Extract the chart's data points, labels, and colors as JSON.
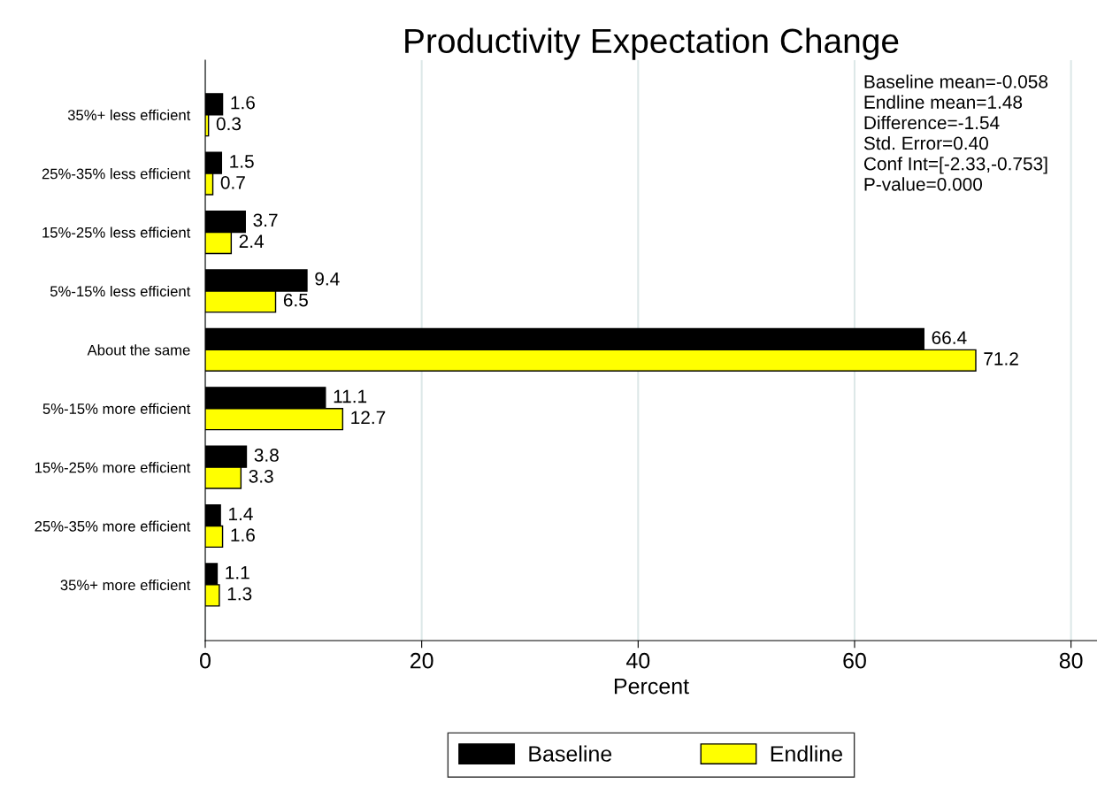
{
  "chart_data": {
    "type": "bar",
    "orientation": "horizontal",
    "title": "Productivity Expectation Change",
    "xlabel": "Percent",
    "categories": [
      "35%+ less efficient",
      "25%-35% less efficient",
      "15%-25% less efficient",
      "5%-15% less efficient",
      "About the same",
      "5%-15% more efficient",
      "15%-25% more efficient",
      "25%-35% more efficient",
      "35%+ more efficient"
    ],
    "series": [
      {
        "name": "Baseline",
        "color": "#000000",
        "values": [
          1.6,
          1.5,
          3.7,
          9.4,
          66.4,
          11.1,
          3.8,
          1.4,
          1.1
        ]
      },
      {
        "name": "Endline",
        "color": "#ffff00",
        "values": [
          0.3,
          0.7,
          2.4,
          6.5,
          71.2,
          12.7,
          3.3,
          1.6,
          1.3
        ]
      }
    ],
    "xlim": [
      0,
      82.4
    ],
    "xticks": [
      0,
      20,
      40,
      60,
      80
    ],
    "grid": "x",
    "legend": "bottom",
    "data_labels": true,
    "annotations": [
      "Baseline mean=-0.058",
      "Endline mean=1.48",
      "Difference=-1.54",
      "Std. Error=0.40",
      "Conf Int=[-2.33,-0.753]",
      "P-value=0.000"
    ]
  }
}
